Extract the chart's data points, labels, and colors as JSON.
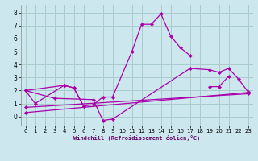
{
  "xlabel": "Windchill (Refroidissement éolien,°C)",
  "bg_color": "#cce8ee",
  "grid_color": "#aacccc",
  "line_color": "#aa00aa",
  "x_ticks": [
    0,
    1,
    2,
    3,
    4,
    5,
    6,
    7,
    8,
    9,
    10,
    11,
    12,
    13,
    14,
    15,
    16,
    17,
    18,
    19,
    20,
    21,
    22,
    23
  ],
  "y_ticks": [
    0,
    1,
    2,
    3,
    4,
    5,
    6,
    7,
    8
  ],
  "xlim": [
    -0.5,
    23.5
  ],
  "ylim": [
    -0.7,
    8.6
  ],
  "series": [
    {
      "x": [
        0,
        1,
        4,
        5,
        6,
        7,
        8,
        9,
        11,
        12,
        13,
        14,
        15,
        16,
        17
      ],
      "y": [
        2.0,
        1.0,
        2.4,
        2.2,
        0.8,
        0.9,
        1.5,
        1.5,
        5.0,
        7.1,
        7.1,
        7.9,
        6.2,
        5.3,
        4.7
      ]
    },
    {
      "x": [
        0,
        3,
        7,
        8,
        9,
        17,
        19,
        20,
        21,
        22,
        23
      ],
      "y": [
        2.0,
        1.4,
        1.3,
        -0.3,
        -0.2,
        3.7,
        3.6,
        3.4,
        3.7,
        2.9,
        1.9
      ]
    },
    {
      "x": [
        0,
        23
      ],
      "y": [
        0.3,
        1.85
      ]
    },
    {
      "x": [
        0,
        23
      ],
      "y": [
        0.7,
        1.75
      ]
    },
    {
      "x": [
        0,
        4,
        5,
        6
      ],
      "y": [
        2.0,
        2.4,
        2.2,
        0.8
      ]
    },
    {
      "x": [
        19,
        20,
        21
      ],
      "y": [
        2.3,
        2.3,
        3.1
      ]
    }
  ]
}
